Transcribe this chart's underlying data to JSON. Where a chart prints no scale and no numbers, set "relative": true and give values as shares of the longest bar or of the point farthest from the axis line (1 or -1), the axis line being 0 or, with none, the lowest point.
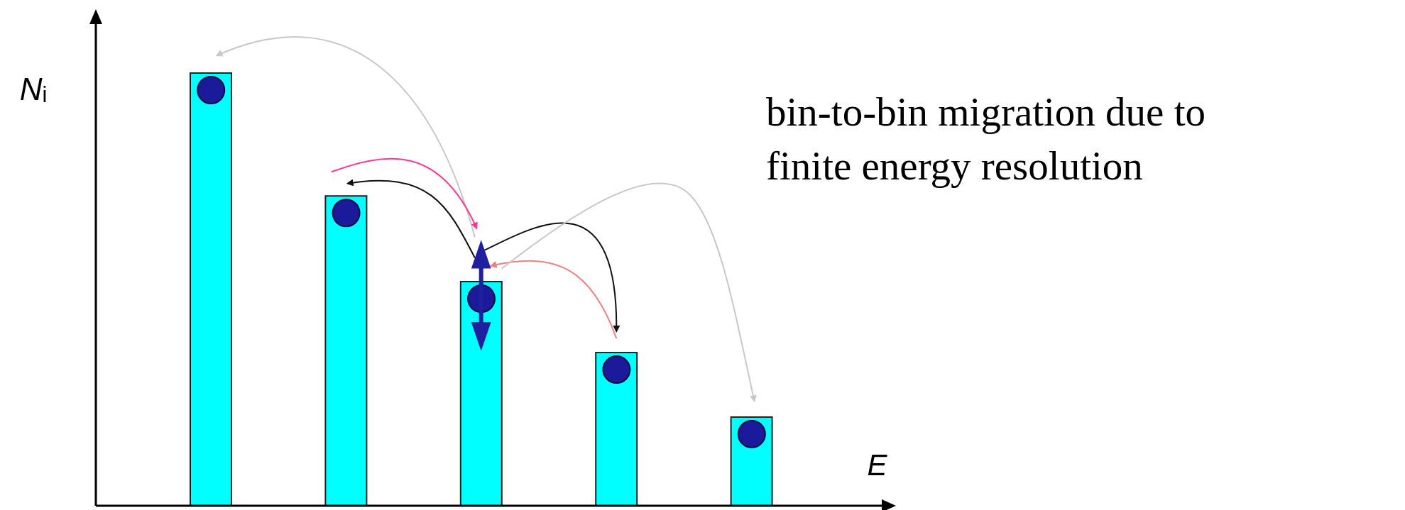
{
  "chart_data": {
    "type": "bar",
    "relative": true,
    "categories": [
      null,
      null,
      null,
      null,
      null
    ],
    "values": [
      1,
      0.716,
      0.518,
      0.354,
      0.205
    ],
    "color": "#00ffff",
    "xlabel": "E",
    "ylabel": "N$_{i}$",
    "annotations": [
      "bin-to-bin migration due to finite energy resolution"
    ],
    "grid": false,
    "legend": false
  }
}
